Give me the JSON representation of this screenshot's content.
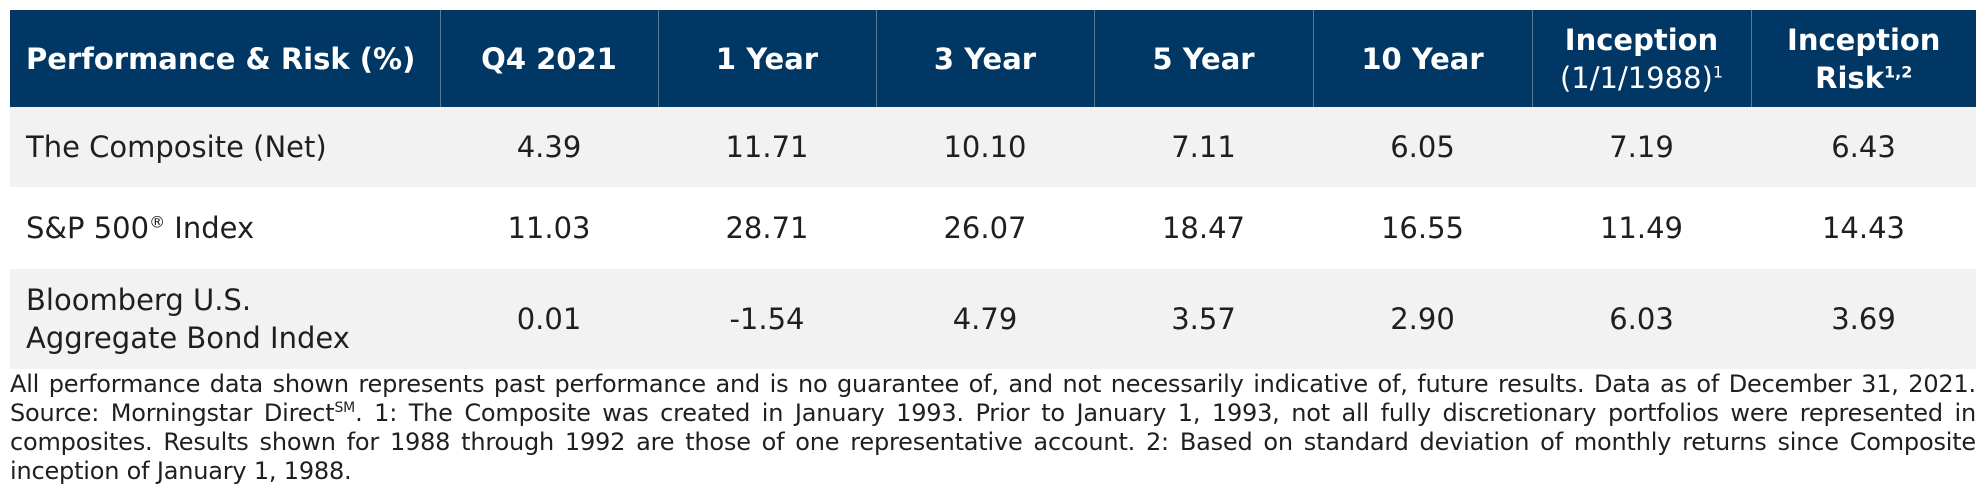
{
  "chart_data": {
    "type": "table",
    "columns": {
      "c0": "Performance & Risk (%)",
      "c1": "Q4 2021",
      "c2": "1 Year",
      "c3": "3 Year",
      "c4": "5 Year",
      "c5": "10 Year",
      "c6_line1": "Inception",
      "c6_line2": "(1/1/1988)",
      "c6_sup": "1",
      "c7_line1": "Inception",
      "c7_line2": "Risk",
      "c7_sup": "1,2"
    },
    "rows": [
      {
        "label_line1": "The Composite (Net)",
        "values": [
          "4.39",
          "11.71",
          "10.10",
          "7.11",
          "6.05",
          "7.19",
          "6.43"
        ]
      },
      {
        "label_main": "S&P 500",
        "label_sup": "®",
        "label_tail": " Index",
        "values": [
          "11.03",
          "28.71",
          "26.07",
          "18.47",
          "16.55",
          "11.49",
          "14.43"
        ]
      },
      {
        "label_line1": "Bloomberg U.S.",
        "label_line2": "Aggregate Bond Index",
        "values": [
          "0.01",
          "-1.54",
          "4.79",
          "3.57",
          "2.90",
          "6.03",
          "3.69"
        ]
      }
    ]
  },
  "footnote": {
    "part1": "All performance data shown represents past performance and is no guarantee of, and not necessarily indicative of, future results. Data as of December 31, 2021. Source: Morningstar Direct",
    "sup": "SM",
    "part2": ". 1: The Composite was created in January 1993. Prior to January 1, 1993, not all fully discretionary portfolios were represented in composites. Results shown for 1988 through 1992 are those of one representative account. 2: Based on standard deviation of monthly returns since Composite inception of January 1, 1988."
  },
  "colors": {
    "header_bg": "#003764",
    "stripe_bg": "#f2f2f2"
  }
}
